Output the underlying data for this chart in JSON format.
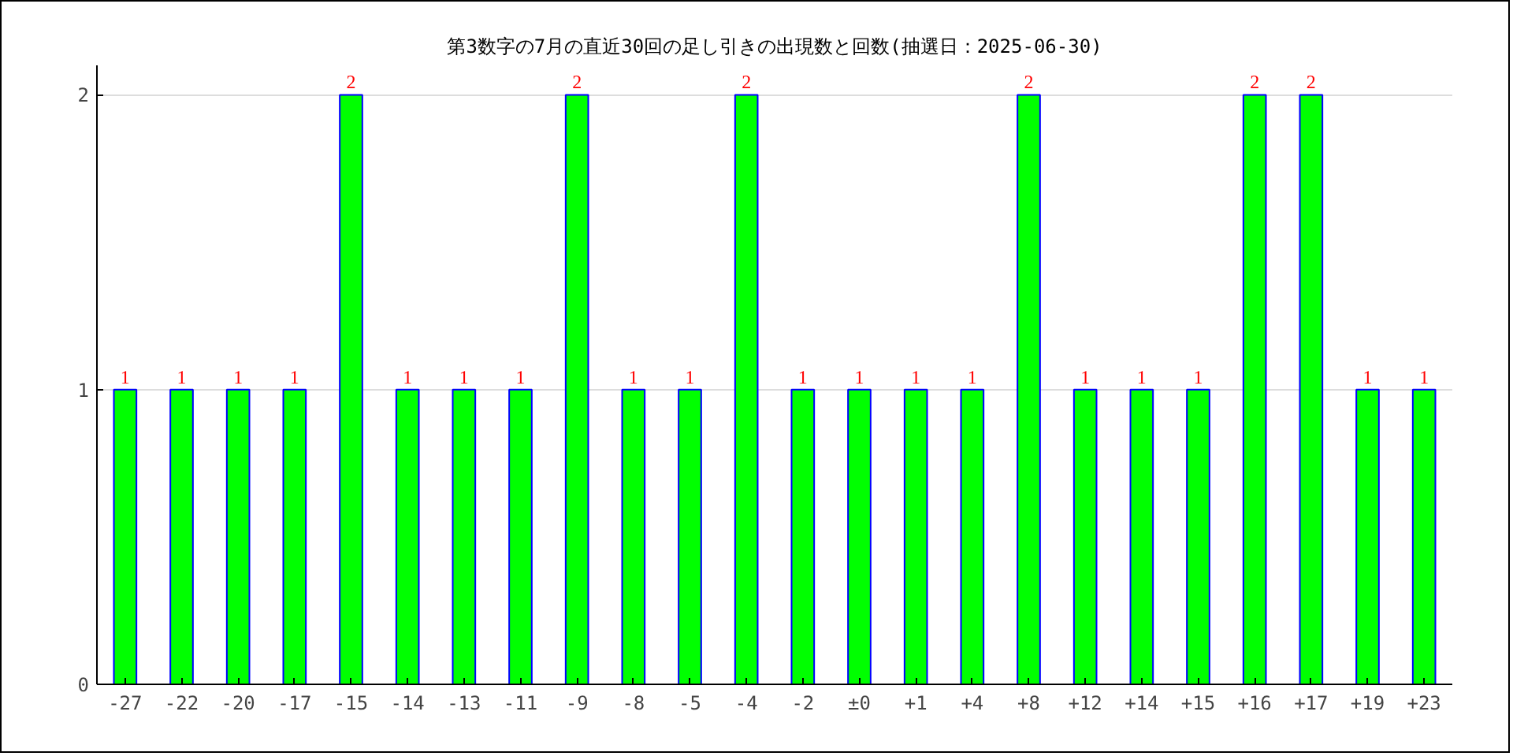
{
  "chart_data": {
    "type": "bar",
    "title": "第3数字の7月の直近30回の足し引きの出現数と回数(抽選日：2025-06-30)",
    "categories": [
      "-27",
      "-22",
      "-20",
      "-17",
      "-15",
      "-14",
      "-13",
      "-11",
      "-9",
      "-8",
      "-5",
      "-4",
      "-2",
      "±0",
      "+1",
      "+4",
      "+8",
      "+12",
      "+14",
      "+15",
      "+16",
      "+17",
      "+19",
      "+23"
    ],
    "series": [
      {
        "color": "#00ff00",
        "values": [
          1,
          1,
          1,
          1,
          2,
          1,
          1,
          1,
          2,
          1,
          1,
          2,
          1,
          1,
          1,
          1,
          2,
          1,
          1,
          1,
          2,
          2,
          1,
          1
        ]
      }
    ],
    "ylim": [
      0,
      2.1
    ],
    "yticks": [
      0,
      1,
      2
    ],
    "grid": "y",
    "data_labels": true
  }
}
